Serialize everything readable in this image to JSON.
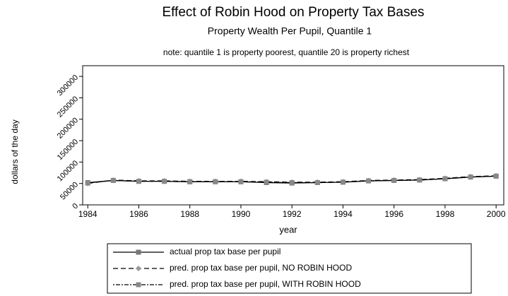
{
  "chart_data": {
    "type": "line",
    "title": "Effect of Robin Hood on Property Tax Bases",
    "subtitle": "Property Wealth Per Pupil, Quantile 1",
    "note": "note: quantile 1 is property poorest, quantile 20 is property richest",
    "x_label": "year",
    "y_label": "dollars of the day",
    "x": [
      1984,
      1985,
      1986,
      1987,
      1988,
      1989,
      1990,
      1991,
      1992,
      1993,
      1994,
      1995,
      1996,
      1997,
      1998,
      1999,
      2000
    ],
    "xlim": [
      1983.8,
      2000.3
    ],
    "xticks": [
      1984,
      1986,
      1988,
      1990,
      1992,
      1994,
      1996,
      1998,
      2000
    ],
    "ylim": [
      0,
      325000
    ],
    "yticks": [
      0,
      50000,
      100000,
      150000,
      200000,
      250000,
      300000
    ],
    "series": [
      {
        "name": "actual prop tax base per pupil",
        "color": "#777777",
        "marker": "square",
        "dash": "solid",
        "values": [
          52000,
          57000,
          55000,
          55000,
          54000,
          54000,
          54000,
          52000,
          51000,
          52000,
          53000,
          56000,
          57000,
          58000,
          61000,
          65000,
          67000
        ]
      },
      {
        "name": "pred. prop tax base per pupil, NO ROBIN HOOD",
        "color": "#999999",
        "marker": "diamond",
        "dash": "dashed",
        "values": [
          50000,
          58000,
          56000,
          56000,
          55000,
          55000,
          55000,
          54000,
          53000,
          53000,
          54000,
          57000,
          58000,
          59000,
          62000,
          66000,
          68000
        ]
      },
      {
        "name": "pred. prop tax base per pupil, WITH ROBIN HOOD",
        "color": "#888888",
        "marker": "square",
        "dash": "dashdot",
        "values": [
          51000,
          57000,
          55000,
          55000,
          54000,
          54000,
          54000,
          53000,
          52000,
          52000,
          53000,
          56000,
          57000,
          58000,
          61000,
          65000,
          67000
        ]
      }
    ]
  }
}
